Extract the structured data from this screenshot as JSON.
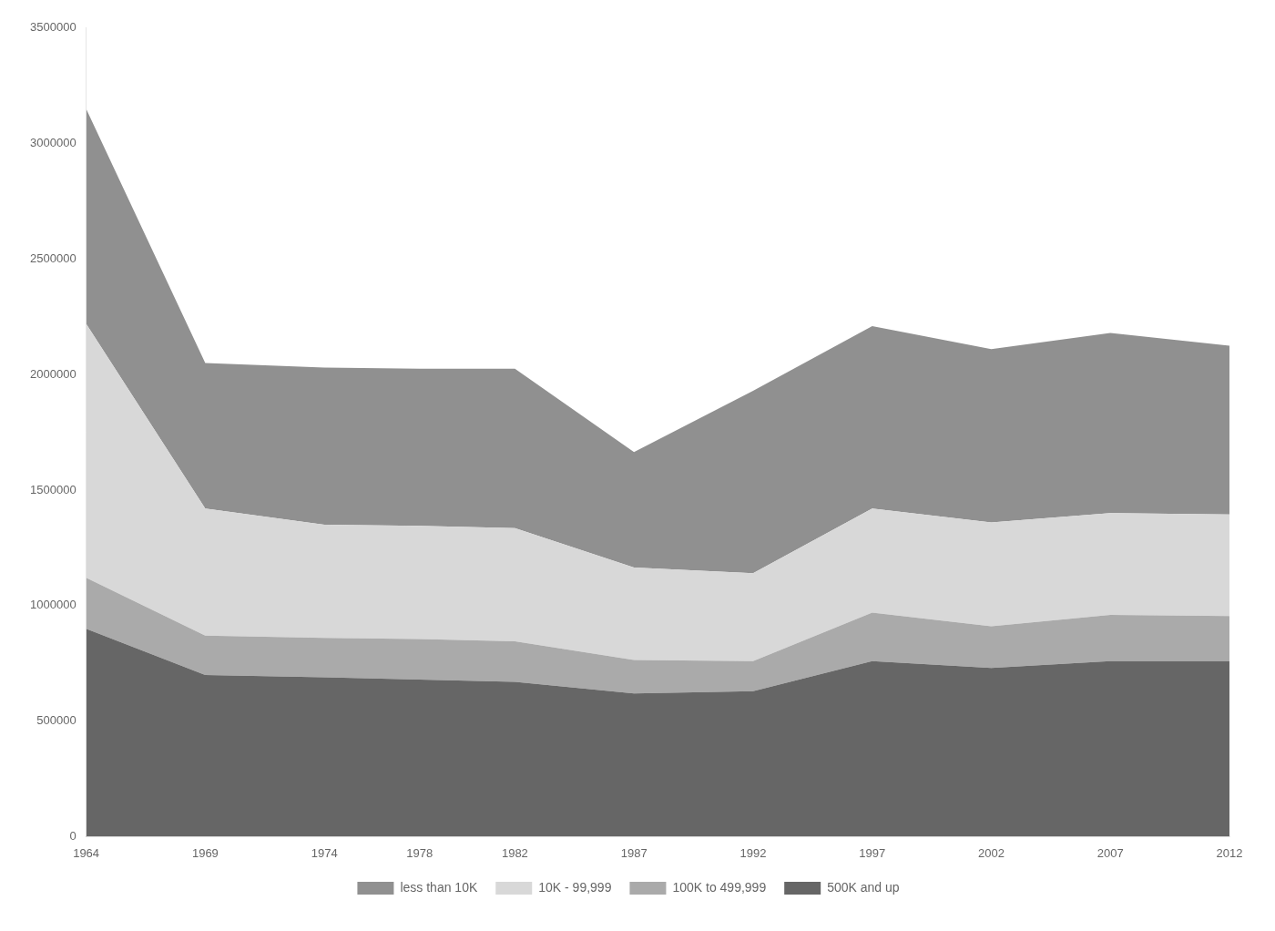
{
  "chart_data": {
    "type": "area",
    "stacked": true,
    "x": [
      1964,
      1969,
      1974,
      1978,
      1982,
      1987,
      1992,
      1997,
      2002,
      2007,
      2012
    ],
    "series": [
      {
        "name": "500K and up",
        "color": "#666666",
        "values": [
          900000,
          700000,
          690000,
          680000,
          670000,
          620000,
          630000,
          760000,
          730000,
          760000,
          760000
        ]
      },
      {
        "name": "100K to 499,999",
        "color": "#aaaaaa",
        "values": [
          220000,
          170000,
          170000,
          175000,
          175000,
          145000,
          130000,
          210000,
          180000,
          200000,
          195000
        ]
      },
      {
        "name": "10K - 99,999",
        "color": "#d8d8d8",
        "values": [
          1100000,
          550000,
          490000,
          490000,
          490000,
          400000,
          380000,
          450000,
          450000,
          440000,
          440000
        ]
      },
      {
        "name": "less than 10K",
        "color": "#909090",
        "values": [
          930000,
          630000,
          680000,
          680000,
          690000,
          500000,
          790000,
          790000,
          750000,
          780000,
          730000
        ]
      }
    ],
    "xlim": [
      1964,
      2012
    ],
    "xticks": [
      1964,
      1969,
      1974,
      1978,
      1982,
      1987,
      1992,
      1997,
      2002,
      2007,
      2012
    ],
    "ylim": [
      0,
      3500000
    ],
    "yticks": [
      0,
      500000,
      1000000,
      1500000,
      2000000,
      2500000,
      3000000,
      3500000
    ],
    "grid": false,
    "legend": "bottom"
  }
}
